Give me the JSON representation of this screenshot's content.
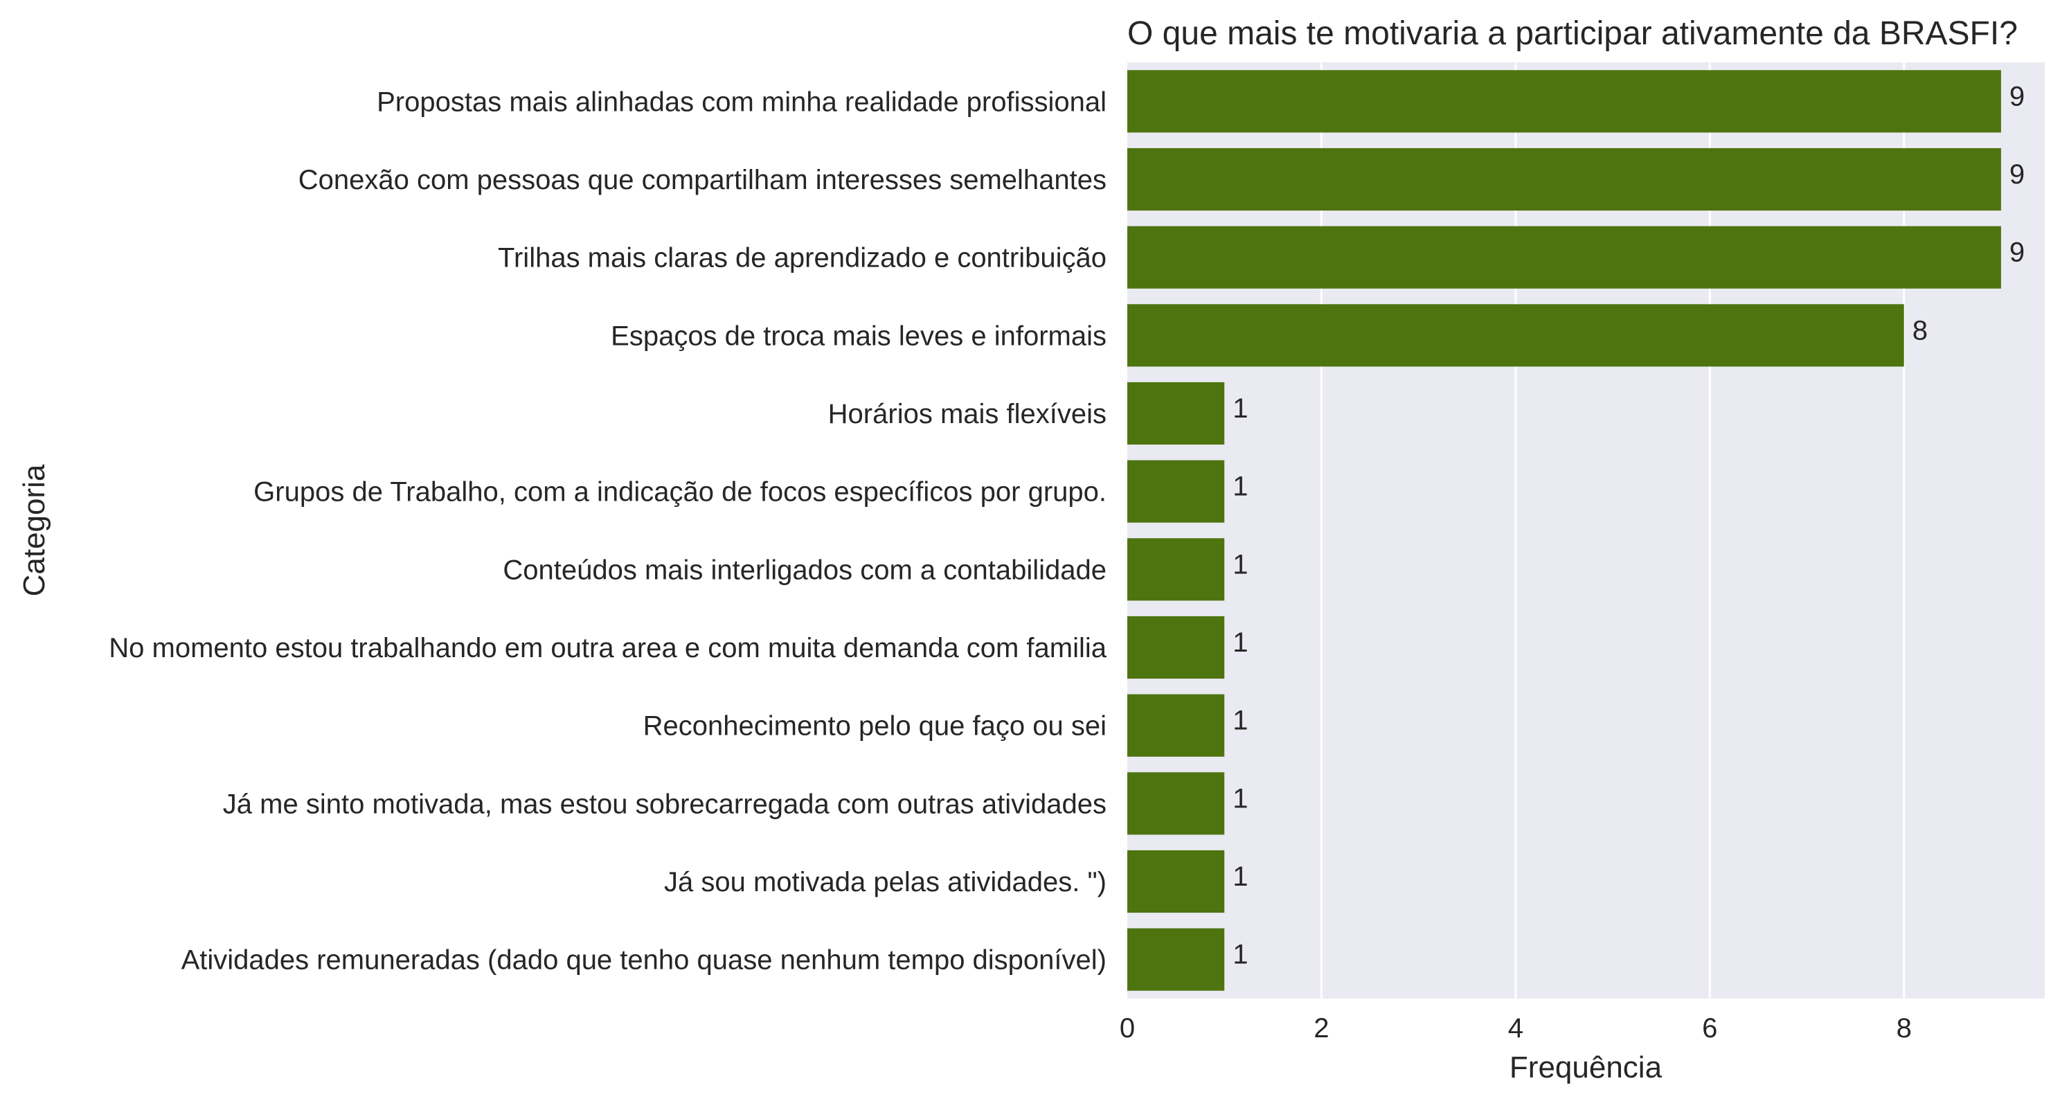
{
  "chart_data": {
    "type": "bar",
    "orientation": "horizontal",
    "title": "O que mais te motivaria a participar ativamente da BRASFI?",
    "xlabel": "Frequência",
    "ylabel": "Categoria",
    "categories": [
      "Propostas mais alinhadas com minha realidade profissional",
      "Conexão com pessoas que compartilham interesses semelhantes",
      "Trilhas mais claras de aprendizado e contribuição",
      "Espaços de troca mais leves e informais",
      "Horários mais flexíveis",
      "Grupos de Trabalho, com a indicação de focos específicos por grupo.",
      "Conteúdos mais interligados com a contabilidade",
      "No momento estou trabalhando em outra area e com muita demanda com familia",
      "Reconhecimento pelo que faço ou sei",
      "Já me sinto motivada, mas estou sobrecarregada com outras atividades",
      "Já sou motivada pelas atividades. \")",
      "Atividades remuneradas (dado que tenho quase nenhum tempo disponível)"
    ],
    "values": [
      9,
      9,
      9,
      8,
      1,
      1,
      1,
      1,
      1,
      1,
      1,
      1
    ],
    "xticks": [
      0,
      2,
      4,
      6,
      8
    ],
    "xlim": [
      0,
      9.45
    ],
    "grid": true,
    "legend": "none",
    "colors": {
      "bar": "#4e7410",
      "plot_background": "#eaeaf2",
      "grid": "#ffffff",
      "text": "#262626"
    }
  }
}
